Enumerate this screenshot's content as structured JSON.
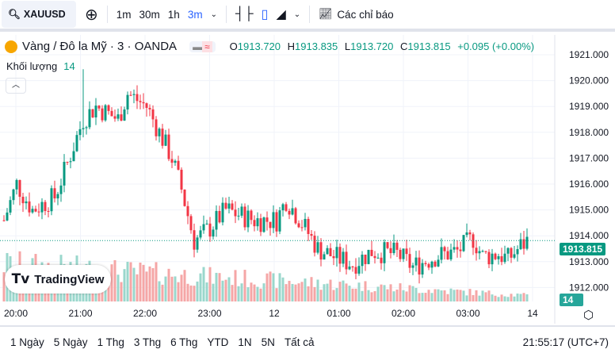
{
  "toolbar": {
    "symbol": "XAUUSD",
    "intervals": [
      "1m",
      "30m",
      "1h",
      "3m"
    ],
    "active_interval": "3m",
    "indicators_label": "Các chỉ báo"
  },
  "legend": {
    "title": "Vàng / Đô la Mỹ · 3 · OANDA",
    "o_label": "O",
    "o": "1913.720",
    "h_label": "H",
    "h": "1913.835",
    "l_label": "L",
    "l": "1913.720",
    "c_label": "C",
    "c": "1913.815",
    "change": "+0.095 (+0.00%)"
  },
  "volume": {
    "label": "Khối lượng",
    "value": "14"
  },
  "colors": {
    "up": "#089981",
    "down": "#f23645",
    "accent": "#2962ff",
    "up_vol": "#9ad7cc",
    "down_vol": "#f5a6a6"
  },
  "chart_data": {
    "type": "candlestick",
    "price_ticks": [
      "1921.000",
      "1920.000",
      "1919.000",
      "1918.000",
      "1917.000",
      "1916.000",
      "1915.000",
      "1914.000",
      "1913.000",
      "1912.000"
    ],
    "ylim": [
      1911.7,
      1921.3
    ],
    "time_ticks": [
      "20:00",
      "21:00",
      "22:00",
      "23:00",
      "12",
      "01:00",
      "02:00",
      "03:00",
      "14"
    ],
    "current_price": "1913.815",
    "current_volume": "14",
    "anchors": [
      [
        0,
        1914.6
      ],
      [
        4,
        1916
      ],
      [
        9,
        1915
      ],
      [
        16,
        1915.5
      ],
      [
        20,
        1916.8
      ],
      [
        25,
        1918.5
      ],
      [
        29,
        1919
      ],
      [
        36,
        1918.5
      ],
      [
        39,
        1919.5
      ],
      [
        45,
        1919
      ],
      [
        49,
        1918
      ],
      [
        53,
        1917
      ],
      [
        56,
        1915.8
      ],
      [
        60,
        1913.8
      ],
      [
        65,
        1914.3
      ],
      [
        70,
        1915
      ],
      [
        79,
        1914.6
      ],
      [
        86,
        1914.6
      ],
      [
        89,
        1915.4
      ],
      [
        94,
        1914.5
      ],
      [
        99,
        1913.5
      ],
      [
        104,
        1913.2
      ],
      [
        110,
        1912.9
      ],
      [
        116,
        1913.4
      ],
      [
        124,
        1913.3
      ],
      [
        129,
        1912.8
      ],
      [
        136,
        1913.2
      ],
      [
        143,
        1913.4
      ],
      [
        148,
        1913.9
      ],
      [
        151,
        1913.2
      ],
      [
        156,
        1913.3
      ],
      [
        159,
        1913.1
      ],
      [
        163,
        1913.6
      ],
      [
        165,
        1913.8
      ]
    ]
  },
  "bottom": {
    "ranges": [
      "1 Ngày",
      "5 Ngày",
      "1 Thg",
      "3 Thg",
      "6 Thg",
      "YTD",
      "1N",
      "5N",
      "Tất cả"
    ],
    "clock": "21:55:17 (UTC+7)"
  },
  "logo": "TradingView"
}
